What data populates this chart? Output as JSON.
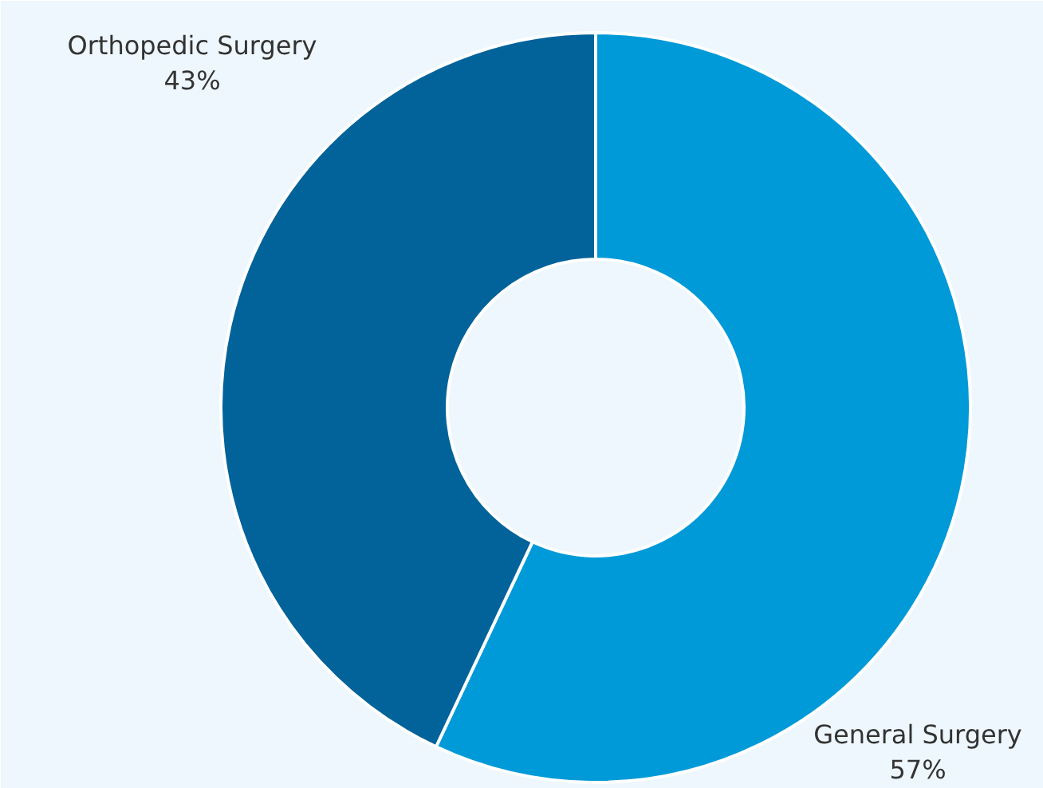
{
  "chart_data": {
    "type": "donut",
    "categories": [
      "General Surgery",
      "Orthopedic Surgery"
    ],
    "values": [
      57,
      43
    ],
    "value_labels": [
      "57%",
      "43%"
    ],
    "colors": [
      "#009ad8",
      "#02639a"
    ]
  }
}
